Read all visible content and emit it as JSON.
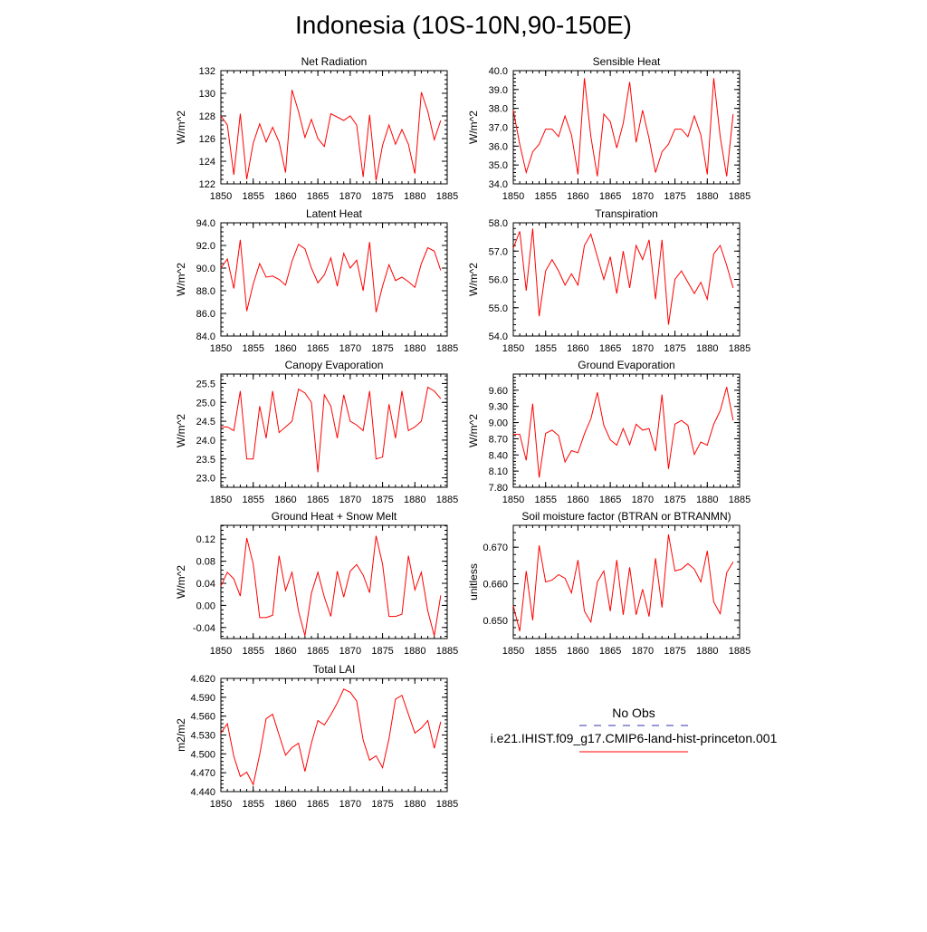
{
  "figure": {
    "title": "Indonesia (10S-10N,90-150E)",
    "line_color": "#ff0000",
    "obs_color": "#3333aa"
  },
  "legend": {
    "obs_label": "No Obs",
    "model_label": "i.e21.IHIST.f09_g17.CMIP6-land-hist-princeton.001"
  },
  "chart_data": [
    {
      "type": "line",
      "title": "Net Radiation",
      "ylabel": "W/m^2",
      "xlim": [
        1850,
        1885
      ],
      "ylim": [
        122,
        132
      ],
      "yticks": [
        122,
        124,
        126,
        128,
        130,
        132
      ],
      "ytick_labels": [
        "122",
        "124",
        "126",
        "128",
        "130",
        "132"
      ],
      "xticks": [
        1850,
        1855,
        1860,
        1865,
        1870,
        1875,
        1880,
        1885
      ],
      "xtick_labels": [
        "1850",
        "1855",
        "1860",
        "1865",
        "1870",
        "1875",
        "1880",
        "1885"
      ],
      "x": [
        1850,
        1851,
        1852,
        1853,
        1854,
        1855,
        1856,
        1857,
        1858,
        1859,
        1860,
        1861,
        1862,
        1863,
        1864,
        1865,
        1866,
        1867,
        1868,
        1869,
        1870,
        1871,
        1872,
        1873,
        1874,
        1875,
        1876,
        1877,
        1878,
        1879,
        1880,
        1881,
        1882,
        1883,
        1884
      ],
      "series": [
        {
          "values": [
            128.0,
            127.2,
            122.8,
            128.2,
            122.4,
            125.6,
            127.3,
            125.7,
            127.0,
            125.7,
            123.0,
            130.3,
            128.4,
            126.1,
            127.7,
            126.0,
            125.3,
            128.2,
            127.9,
            127.6,
            128.0,
            127.2,
            122.6,
            128.1,
            122.3,
            125.4,
            127.2,
            125.5,
            126.8,
            125.5,
            122.9,
            130.1,
            128.4,
            125.9,
            127.6
          ]
        }
      ]
    },
    {
      "type": "line",
      "title": "Sensible Heat",
      "ylabel": "W/m^2",
      "xlim": [
        1850,
        1885
      ],
      "ylim": [
        34.0,
        40.0
      ],
      "yticks": [
        34,
        35,
        36,
        37,
        38,
        39,
        40
      ],
      "ytick_labels": [
        "34.0",
        "35.0",
        "36.0",
        "37.0",
        "38.0",
        "39.0",
        "40.0"
      ],
      "xticks": [
        1850,
        1855,
        1860,
        1865,
        1870,
        1875,
        1880,
        1885
      ],
      "xtick_labels": [
        "1850",
        "1855",
        "1860",
        "1865",
        "1870",
        "1875",
        "1880",
        "1885"
      ],
      "x": [
        1850,
        1851,
        1852,
        1853,
        1854,
        1855,
        1856,
        1857,
        1858,
        1859,
        1860,
        1861,
        1862,
        1863,
        1864,
        1865,
        1866,
        1867,
        1868,
        1869,
        1870,
        1871,
        1872,
        1873,
        1874,
        1875,
        1876,
        1877,
        1878,
        1879,
        1880,
        1881,
        1882,
        1883,
        1884
      ],
      "series": [
        {
          "values": [
            37.9,
            36.1,
            34.6,
            35.7,
            36.1,
            36.9,
            36.9,
            36.5,
            37.6,
            36.6,
            34.5,
            39.6,
            36.5,
            34.4,
            37.7,
            37.3,
            35.9,
            37.2,
            39.4,
            36.2,
            37.9,
            36.4,
            34.6,
            35.7,
            36.1,
            36.9,
            36.9,
            36.5,
            37.6,
            36.6,
            34.5,
            39.6,
            36.5,
            34.4,
            37.7
          ]
        }
      ]
    },
    {
      "type": "line",
      "title": "Latent Heat",
      "ylabel": "W/m^2",
      "xlim": [
        1850,
        1885
      ],
      "ylim": [
        84.0,
        94.0
      ],
      "yticks": [
        84,
        86,
        88,
        90,
        92,
        94
      ],
      "ytick_labels": [
        "84.0",
        "86.0",
        "88.0",
        "90.0",
        "92.0",
        "94.0"
      ],
      "xticks": [
        1850,
        1855,
        1860,
        1865,
        1870,
        1875,
        1880,
        1885
      ],
      "xtick_labels": [
        "1850",
        "1855",
        "1860",
        "1865",
        "1870",
        "1875",
        "1880",
        "1885"
      ],
      "x": [
        1850,
        1851,
        1852,
        1853,
        1854,
        1855,
        1856,
        1857,
        1858,
        1859,
        1860,
        1861,
        1862,
        1863,
        1864,
        1865,
        1866,
        1867,
        1868,
        1869,
        1870,
        1871,
        1872,
        1873,
        1874,
        1875,
        1876,
        1877,
        1878,
        1879,
        1880,
        1881,
        1882,
        1883,
        1884
      ],
      "series": [
        {
          "values": [
            90.0,
            90.8,
            88.2,
            92.5,
            86.2,
            88.6,
            90.4,
            89.2,
            89.3,
            89.0,
            88.5,
            90.6,
            92.1,
            91.7,
            90.0,
            88.7,
            89.4,
            90.9,
            88.4,
            91.3,
            90.0,
            90.7,
            88.0,
            92.3,
            86.1,
            88.4,
            90.3,
            88.9,
            89.2,
            88.8,
            88.3,
            90.4,
            91.8,
            91.5,
            89.8
          ]
        }
      ]
    },
    {
      "type": "line",
      "title": "Transpiration",
      "ylabel": "W/m^2",
      "xlim": [
        1850,
        1885
      ],
      "ylim": [
        54.0,
        58.0
      ],
      "yticks": [
        54,
        55,
        56,
        57,
        58
      ],
      "ytick_labels": [
        "54.0",
        "55.0",
        "56.0",
        "57.0",
        "58.0"
      ],
      "xticks": [
        1850,
        1855,
        1860,
        1865,
        1870,
        1875,
        1880,
        1885
      ],
      "xtick_labels": [
        "1850",
        "1855",
        "1860",
        "1865",
        "1870",
        "1875",
        "1880",
        "1885"
      ],
      "x": [
        1850,
        1851,
        1852,
        1853,
        1854,
        1855,
        1856,
        1857,
        1858,
        1859,
        1860,
        1861,
        1862,
        1863,
        1864,
        1865,
        1866,
        1867,
        1868,
        1869,
        1870,
        1871,
        1872,
        1873,
        1874,
        1875,
        1876,
        1877,
        1878,
        1879,
        1880,
        1881,
        1882,
        1883,
        1884
      ],
      "series": [
        {
          "values": [
            57.1,
            57.7,
            55.6,
            57.8,
            54.7,
            56.3,
            56.7,
            56.3,
            55.8,
            56.2,
            55.8,
            57.2,
            57.6,
            56.8,
            56.0,
            56.8,
            55.5,
            57.0,
            55.7,
            57.2,
            56.7,
            57.4,
            55.3,
            57.4,
            54.4,
            56.0,
            56.3,
            55.9,
            55.5,
            55.9,
            55.3,
            56.9,
            57.2,
            56.5,
            55.7
          ]
        }
      ]
    },
    {
      "type": "line",
      "title": "Canopy Evaporation",
      "ylabel": "W/m^2",
      "xlim": [
        1850,
        1885
      ],
      "ylim": [
        22.75,
        25.75
      ],
      "yticks": [
        23.0,
        23.5,
        24.0,
        24.5,
        25.0,
        25.5
      ],
      "ytick_labels": [
        "23.0",
        "23.5",
        "24.0",
        "24.5",
        "25.0",
        "25.5"
      ],
      "xticks": [
        1850,
        1855,
        1860,
        1865,
        1870,
        1875,
        1880,
        1885
      ],
      "xtick_labels": [
        "1850",
        "1855",
        "1860",
        "1865",
        "1870",
        "1875",
        "1880",
        "1885"
      ],
      "x": [
        1850,
        1851,
        1852,
        1853,
        1854,
        1855,
        1856,
        1857,
        1858,
        1859,
        1860,
        1861,
        1862,
        1863,
        1864,
        1865,
        1866,
        1867,
        1868,
        1869,
        1870,
        1871,
        1872,
        1873,
        1874,
        1875,
        1876,
        1877,
        1878,
        1879,
        1880,
        1881,
        1882,
        1883,
        1884
      ],
      "series": [
        {
          "values": [
            24.35,
            24.35,
            24.25,
            25.3,
            23.5,
            23.5,
            24.9,
            24.05,
            25.3,
            24.2,
            24.35,
            24.5,
            25.35,
            25.25,
            25.0,
            23.15,
            25.2,
            24.9,
            24.05,
            25.2,
            24.5,
            24.4,
            24.25,
            25.3,
            23.5,
            23.55,
            24.95,
            24.05,
            25.3,
            24.25,
            24.35,
            24.5,
            25.4,
            25.3,
            25.1
          ]
        }
      ]
    },
    {
      "type": "line",
      "title": "Ground Evaporation",
      "ylabel": "W/m^2",
      "xlim": [
        1850,
        1885
      ],
      "ylim": [
        7.8,
        9.9
      ],
      "yticks": [
        7.8,
        8.1,
        8.4,
        8.7,
        9.0,
        9.3,
        9.6
      ],
      "ytick_labels": [
        "7.80",
        "8.10",
        "8.40",
        "8.70",
        "9.00",
        "9.30",
        "9.60"
      ],
      "xticks": [
        1850,
        1855,
        1860,
        1865,
        1870,
        1875,
        1880,
        1885
      ],
      "xtick_labels": [
        "1850",
        "1855",
        "1860",
        "1865",
        "1870",
        "1875",
        "1880",
        "1885"
      ],
      "x": [
        1850,
        1851,
        1852,
        1853,
        1854,
        1855,
        1856,
        1857,
        1858,
        1859,
        1860,
        1861,
        1862,
        1863,
        1864,
        1865,
        1866,
        1867,
        1868,
        1869,
        1870,
        1871,
        1872,
        1873,
        1874,
        1875,
        1876,
        1877,
        1878,
        1879,
        1880,
        1881,
        1882,
        1883,
        1884
      ],
      "series": [
        {
          "values": [
            8.78,
            8.78,
            8.3,
            9.35,
            7.98,
            8.8,
            8.86,
            8.76,
            8.27,
            8.48,
            8.44,
            8.79,
            9.07,
            9.56,
            8.95,
            8.68,
            8.58,
            8.89,
            8.59,
            8.97,
            8.86,
            8.89,
            8.47,
            9.52,
            8.14,
            8.97,
            9.04,
            8.95,
            8.41,
            8.64,
            8.58,
            8.97,
            9.22,
            9.66,
            9.04
          ]
        }
      ]
    },
    {
      "type": "line",
      "title": "Ground Heat + Snow Melt",
      "ylabel": "W/m^2",
      "xlim": [
        1850,
        1885
      ],
      "ylim": [
        -0.06,
        0.145
      ],
      "yticks": [
        -0.04,
        0.0,
        0.04,
        0.08,
        0.12
      ],
      "ytick_labels": [
        "-0.04",
        "0.00",
        "0.04",
        "0.08",
        "0.12"
      ],
      "xticks": [
        1850,
        1855,
        1860,
        1865,
        1870,
        1875,
        1880,
        1885
      ],
      "xtick_labels": [
        "1850",
        "1855",
        "1860",
        "1865",
        "1870",
        "1875",
        "1880",
        "1885"
      ],
      "x": [
        1850,
        1851,
        1852,
        1853,
        1854,
        1855,
        1856,
        1857,
        1858,
        1859,
        1860,
        1861,
        1862,
        1863,
        1864,
        1865,
        1866,
        1867,
        1868,
        1869,
        1870,
        1871,
        1872,
        1873,
        1874,
        1875,
        1876,
        1877,
        1878,
        1879,
        1880,
        1881,
        1882,
        1883,
        1884
      ],
      "series": [
        {
          "values": [
            0.035,
            0.06,
            0.048,
            0.017,
            0.122,
            0.075,
            -0.022,
            -0.022,
            -0.018,
            0.09,
            0.027,
            0.06,
            -0.01,
            -0.055,
            0.022,
            0.06,
            0.015,
            -0.02,
            0.062,
            0.015,
            0.062,
            0.074,
            0.055,
            0.023,
            0.126,
            0.075,
            -0.02,
            -0.02,
            -0.016,
            0.09,
            0.028,
            0.06,
            -0.01,
            -0.055,
            0.018
          ]
        }
      ]
    },
    {
      "type": "line",
      "title": "Soil moisture factor (BTRAN or BTRANMN)",
      "ylabel": "unitless",
      "xlim": [
        1850,
        1885
      ],
      "ylim": [
        0.645,
        0.676
      ],
      "yticks": [
        0.65,
        0.66,
        0.67
      ],
      "ytick_labels": [
        "0.650",
        "0.660",
        "0.670"
      ],
      "xticks": [
        1850,
        1855,
        1860,
        1865,
        1870,
        1875,
        1880,
        1885
      ],
      "xtick_labels": [
        "1850",
        "1855",
        "1860",
        "1865",
        "1870",
        "1875",
        "1880",
        "1885"
      ],
      "x": [
        1850,
        1851,
        1852,
        1853,
        1854,
        1855,
        1856,
        1857,
        1858,
        1859,
        1860,
        1861,
        1862,
        1863,
        1864,
        1865,
        1866,
        1867,
        1868,
        1869,
        1870,
        1871,
        1872,
        1873,
        1874,
        1875,
        1876,
        1877,
        1878,
        1879,
        1880,
        1881,
        1882,
        1883,
        1884
      ],
      "series": [
        {
          "values": [
            0.654,
            0.647,
            0.6635,
            0.65,
            0.6705,
            0.6605,
            0.661,
            0.6625,
            0.6615,
            0.6575,
            0.6665,
            0.6525,
            0.6495,
            0.6605,
            0.6635,
            0.6525,
            0.6665,
            0.6515,
            0.6645,
            0.6515,
            0.6585,
            0.651,
            0.667,
            0.6535,
            0.6735,
            0.6635,
            0.664,
            0.6655,
            0.664,
            0.6605,
            0.669,
            0.655,
            0.6518,
            0.663,
            0.666
          ]
        }
      ]
    },
    {
      "type": "line",
      "title": "Total LAI",
      "ylabel": "m2/m2",
      "xlim": [
        1850,
        1885
      ],
      "ylim": [
        4.44,
        4.62
      ],
      "yticks": [
        4.44,
        4.47,
        4.5,
        4.53,
        4.56,
        4.59,
        4.62
      ],
      "ytick_labels": [
        "4.440",
        "4.470",
        "4.500",
        "4.530",
        "4.560",
        "4.590",
        "4.620"
      ],
      "xticks": [
        1850,
        1855,
        1860,
        1865,
        1870,
        1875,
        1880,
        1885
      ],
      "xtick_labels": [
        "1850",
        "1855",
        "1860",
        "1865",
        "1870",
        "1875",
        "1880",
        "1885"
      ],
      "x": [
        1850,
        1851,
        1852,
        1853,
        1854,
        1855,
        1856,
        1857,
        1858,
        1859,
        1860,
        1861,
        1862,
        1863,
        1864,
        1865,
        1866,
        1867,
        1868,
        1869,
        1870,
        1871,
        1872,
        1873,
        1874,
        1875,
        1876,
        1877,
        1878,
        1879,
        1880,
        1881,
        1882,
        1883,
        1884
      ],
      "series": [
        {
          "values": [
            4.533,
            4.548,
            4.496,
            4.464,
            4.471,
            4.451,
            4.499,
            4.556,
            4.563,
            4.53,
            4.498,
            4.51,
            4.517,
            4.472,
            4.517,
            4.553,
            4.546,
            4.562,
            4.581,
            4.603,
            4.598,
            4.584,
            4.522,
            4.49,
            4.497,
            4.478,
            4.524,
            4.587,
            4.593,
            4.563,
            4.533,
            4.541,
            4.553,
            4.509,
            4.551
          ]
        }
      ]
    }
  ]
}
